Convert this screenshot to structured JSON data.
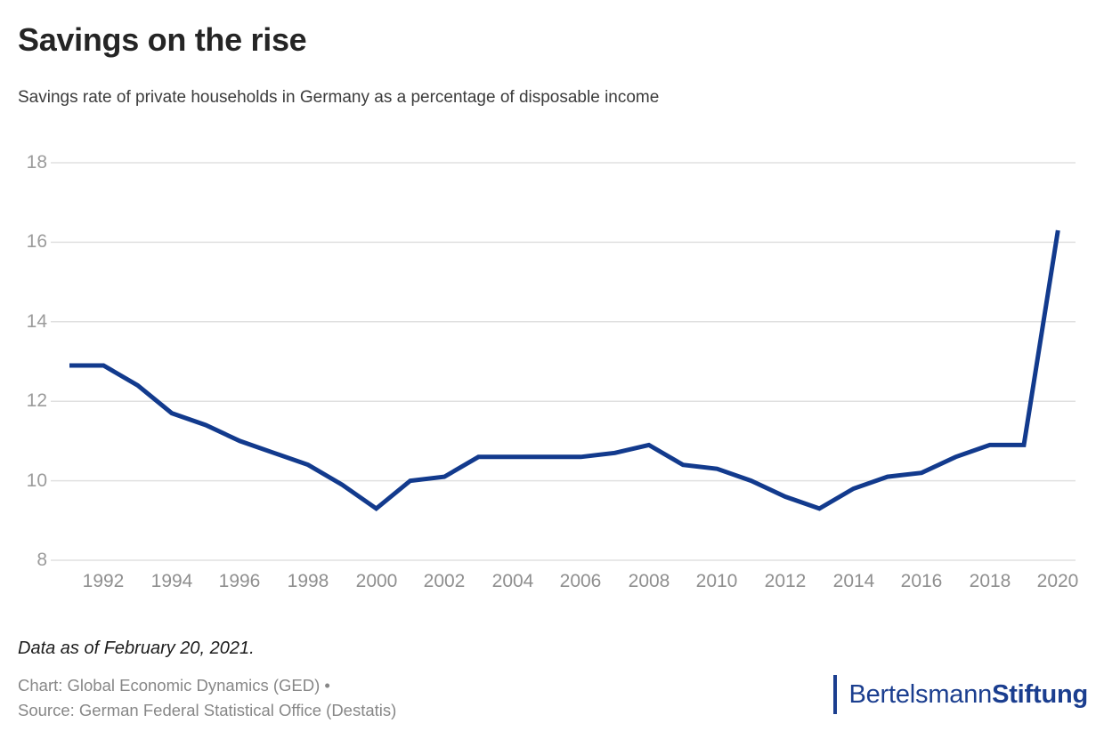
{
  "header": {
    "title": "Savings on the rise",
    "subtitle": "Savings rate of private households in Germany as a percentage of disposable income"
  },
  "chart_data": {
    "type": "line",
    "title": "Savings on the rise",
    "subtitle": "Savings rate of private households in Germany as a percentage of disposable income",
    "xlabel": "",
    "ylabel": "",
    "x": [
      1991,
      1992,
      1993,
      1994,
      1995,
      1996,
      1997,
      1998,
      1999,
      2000,
      2001,
      2002,
      2003,
      2004,
      2005,
      2006,
      2007,
      2008,
      2009,
      2010,
      2011,
      2012,
      2013,
      2014,
      2015,
      2016,
      2017,
      2018,
      2019,
      2020
    ],
    "values": [
      12.9,
      12.9,
      12.4,
      11.7,
      11.4,
      11.0,
      10.7,
      10.4,
      9.9,
      9.3,
      10.0,
      10.1,
      10.6,
      10.6,
      10.6,
      10.6,
      10.7,
      10.9,
      10.4,
      10.3,
      10.0,
      9.6,
      9.3,
      9.8,
      10.1,
      10.2,
      10.6,
      10.9,
      10.9,
      16.3
    ],
    "y_ticks": [
      8,
      10,
      12,
      14,
      16,
      18
    ],
    "x_ticks": [
      1992,
      1994,
      1996,
      1998,
      2000,
      2002,
      2004,
      2006,
      2008,
      2010,
      2012,
      2014,
      2016,
      2018,
      2020
    ],
    "ylim": [
      8,
      18
    ],
    "xlim": [
      1990.4,
      2020.5
    ],
    "grid": "horizontal",
    "legend": "none",
    "series_color": "#123a8d",
    "grid_color": "#e0e0e0",
    "line_width": 5
  },
  "footer": {
    "note": "Data as of February 20, 2021.",
    "chart_credit": "Chart: Global Economic Dynamics (GED) •",
    "source_credit": "Source: German Federal Statistical Office (Destatis)"
  },
  "logo": {
    "name_regular": "Bertelsmann",
    "name_bold": "Stiftung",
    "color": "#1b3e8f"
  },
  "colors": {
    "line": "#123a8d",
    "grid": "#e0e0e0",
    "title": "#252525",
    "subtitle": "#3c3c3c",
    "axis_labels": "#9b9b9b",
    "credits": "#878787",
    "logo": "#1b3e8f",
    "background": "#ffffff"
  }
}
